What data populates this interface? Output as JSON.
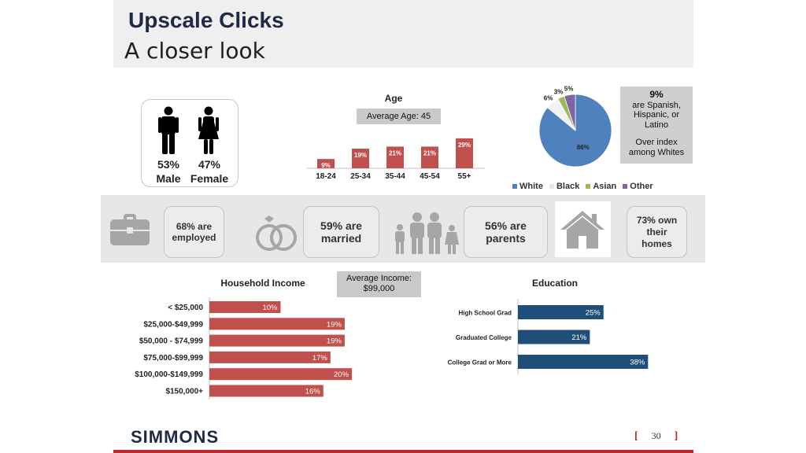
{
  "header": {
    "title": "Upscale Clicks",
    "subtitle": "A closer look"
  },
  "gender": {
    "male_pct": "53%",
    "male_label": "Male",
    "female_pct": "47%",
    "female_label": "Female"
  },
  "lifestyle": {
    "employed": "68% are employed",
    "married": "59% are married",
    "parents": "56% are parents",
    "homes": "73% own their homes"
  },
  "pie_note": {
    "pct": "9%",
    "line1": "are Spanish, Hispanic, or Latino",
    "line2": "Over index among Whites"
  },
  "income_note": {
    "line1": "Average Income:",
    "line2": "$99,000"
  },
  "age_note": "Average Age: 45",
  "footer": {
    "logo": "SIMMONS",
    "page": "30",
    "bracket_open": "[",
    "bracket_close": "]"
  },
  "colors": {
    "red": "#c0504d",
    "blue": "#1f4e79",
    "pie_blue": "#4f81bd",
    "title_navy": "#1f2a44",
    "accent_red": "#c0272d"
  },
  "icons": [
    "male-icon",
    "female-icon",
    "briefcase-icon",
    "rings-icon",
    "family-icon",
    "house-icon"
  ],
  "chart_data": [
    {
      "type": "bar",
      "title": "Age",
      "categories": [
        "18-24",
        "25-34",
        "35-44",
        "45-54",
        "55+"
      ],
      "values": [
        9,
        19,
        21,
        21,
        29
      ],
      "labels": [
        "9%",
        "19%",
        "21%",
        "21%",
        "29%"
      ],
      "ylim": [
        0,
        35
      ]
    },
    {
      "type": "pie",
      "categories": [
        "White",
        "Black",
        "Asian",
        "Other"
      ],
      "values": [
        86,
        6,
        3,
        5
      ],
      "labels": [
        "86%",
        "6%",
        "3%",
        "5%"
      ],
      "colors": [
        "#4f81bd",
        "#f2f2f2",
        "#9bbb59",
        "#8064a2"
      ],
      "legend": "bottom"
    },
    {
      "type": "bar",
      "orientation": "horizontal",
      "title": "Household Income",
      "categories": [
        "< $25,000",
        "$25,000-$49,999",
        "$50,000 - $74,999",
        "$75,000-$99,999",
        "$100,000-$149,999",
        "$150,000+"
      ],
      "values": [
        10,
        19,
        19,
        17,
        20,
        16
      ],
      "labels": [
        "10%",
        "19%",
        "19%",
        "17%",
        "20%",
        "16%"
      ]
    },
    {
      "type": "bar",
      "orientation": "horizontal",
      "title": "Education",
      "categories": [
        "High School Grad",
        "Graduated College",
        "College Grad or More"
      ],
      "values": [
        25,
        21,
        38
      ],
      "labels": [
        "25%",
        "21%",
        "38%"
      ]
    }
  ]
}
